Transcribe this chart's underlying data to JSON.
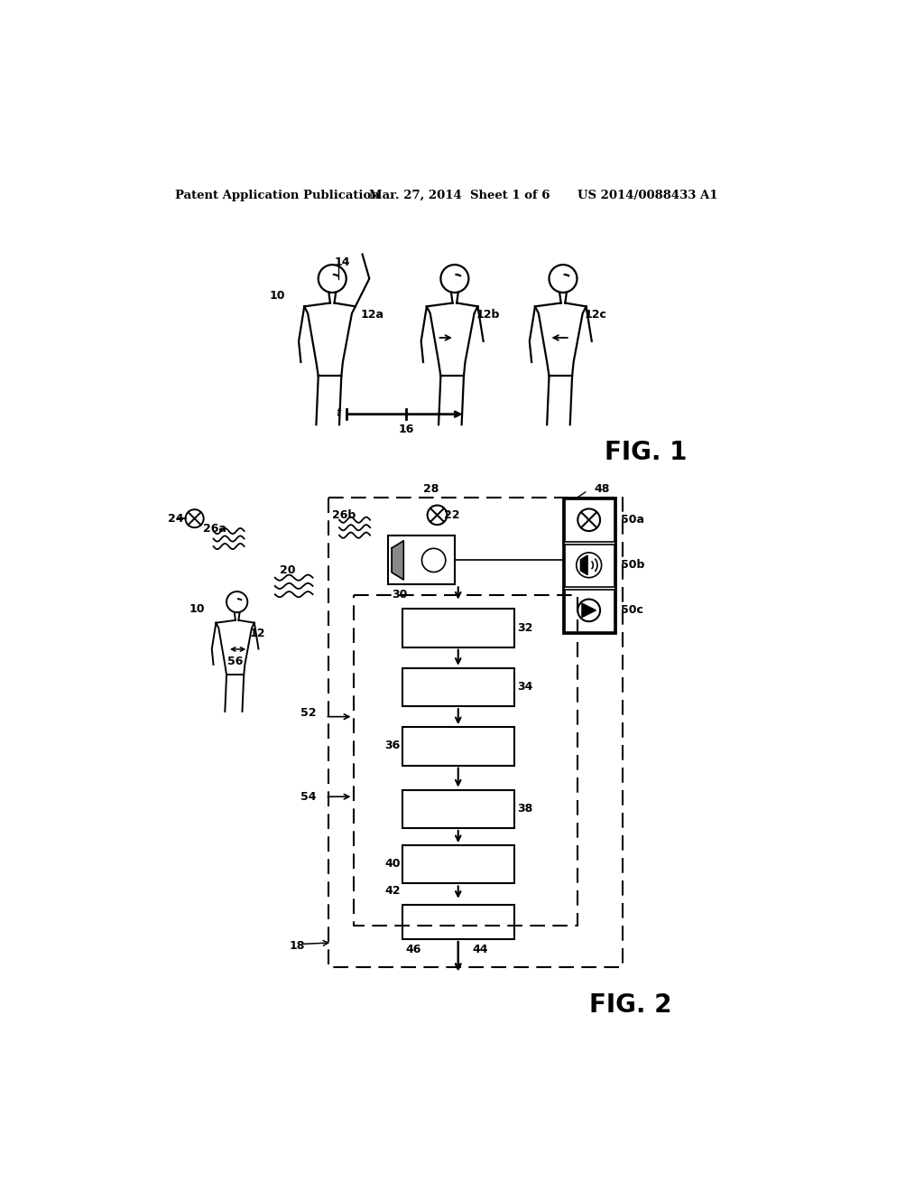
{
  "bg_color": "#ffffff",
  "header_left": "Patent Application Publication",
  "header_mid": "Mar. 27, 2014  Sheet 1 of 6",
  "header_right": "US 2014/0088433 A1",
  "fig1_label": "FIG. 1",
  "fig2_label": "FIG. 2"
}
